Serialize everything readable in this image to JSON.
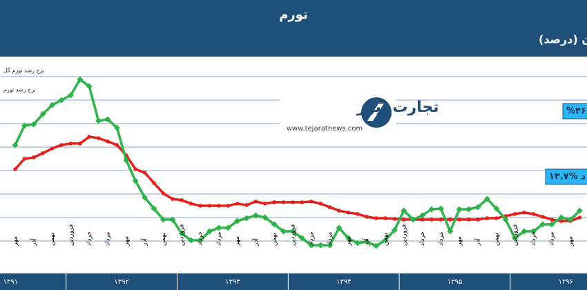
{
  "chart_data": {
    "type": "line",
    "title": "تورم",
    "subtitle": "روند رشد ماهانه تورم نقطه به نقطه کل اقتصاد و قیمت مسکن در شهر تهران (درصد)",
    "categories": [
      "مهر",
      null,
      "آذر",
      null,
      "بهمن",
      null,
      "فروردین",
      null,
      "خرداد",
      null,
      "مرداد",
      null,
      "مهر",
      null,
      "آذر",
      null,
      "بهمن",
      null,
      "فروردین",
      null,
      "خرداد",
      null,
      "مرداد",
      null,
      "مهر",
      null,
      "آذر",
      null,
      "بهمن",
      null,
      "فروردین",
      null,
      "خرداد",
      null,
      "مرداد",
      null,
      "مهر",
      null,
      "آذر",
      null,
      "بهمن",
      null,
      "فروردین",
      null,
      "خرداد",
      null,
      "مرداد",
      null,
      "مهر",
      null,
      "آذر",
      null,
      "بهمن",
      null,
      "فروردین",
      null,
      "خرداد",
      null,
      "مرداد",
      null,
      "مهر",
      null
    ],
    "year_labels": [
      "۱۳۹۱",
      "۱۳۹۲",
      "۱۳۹۳",
      "۱۳۹۴",
      "۱۳۹۵",
      "۱۳۹۶"
    ],
    "series": [
      {
        "name": "نرخ رشد تورم کل",
        "color": "#e3201b",
        "marker": "circle",
        "values": [
          30.6,
          35.0,
          35.6,
          37.4,
          39.4,
          40.9,
          41.5,
          41.5,
          44.4,
          43.8,
          42.4,
          40.9,
          36.5,
          30.6,
          29.1,
          24.7,
          20.3,
          17.9,
          17.4,
          15.9,
          15.0,
          15.0,
          15.0,
          15.0,
          15.9,
          15.3,
          16.8,
          15.9,
          16.5,
          16.5,
          16.5,
          16.5,
          16.8,
          15.9,
          14.4,
          12.9,
          12.1,
          11.5,
          10.3,
          9.7,
          9.7,
          9.4,
          9.1,
          9.1,
          9.1,
          9.1,
          9.1,
          9.1,
          9.1,
          9.1,
          9.1,
          9.7,
          9.7,
          10.6,
          11.5,
          12.1,
          11.5,
          10.3,
          9.1,
          8.5,
          8.5,
          10.0
        ]
      },
      {
        "name": "نرخ رشد تورم",
        "color": "#2db34a",
        "marker": "diamond",
        "values": [
          40.9,
          49.1,
          49.7,
          54.1,
          57.9,
          60.0,
          62.1,
          68.8,
          65.9,
          51.2,
          51.8,
          48.2,
          34.4,
          25.6,
          18.5,
          13.8,
          9.1,
          9.1,
          3.2,
          0.3,
          0.3,
          4.1,
          5.6,
          5.6,
          8.5,
          9.7,
          10.9,
          10.0,
          7.1,
          4.1,
          4.1,
          1.2,
          -1.8,
          -1.8,
          -1.8,
          5.6,
          1.2,
          -0.9,
          -0.3,
          -2.1,
          0.3,
          4.7,
          12.9,
          9.1,
          10.9,
          13.5,
          13.8,
          4.1,
          13.5,
          13.5,
          14.4,
          17.9,
          13.8,
          9.1,
          1.2,
          4.1,
          4.1,
          7.1,
          7.1,
          10.0,
          9.1,
          12.9
        ]
      }
    ],
    "annotations": [
      "%۴۶",
      "د %۱۳.۷"
    ],
    "watermark": {
      "name": "تجارت نیوز",
      "url": "www.tejaratnews.com"
    },
    "ylim": [
      -10,
      80
    ],
    "yticks": [
      0,
      10,
      20,
      30,
      40,
      50,
      60,
      70
    ],
    "grid": true
  }
}
